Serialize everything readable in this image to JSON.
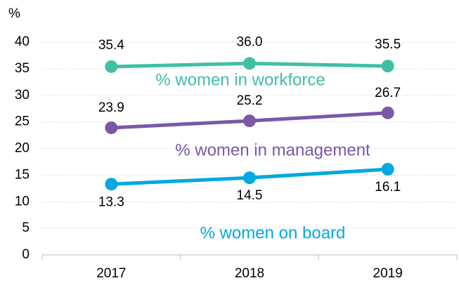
{
  "chart_data": {
    "type": "line",
    "y_label": "%",
    "categories": [
      "2017",
      "2018",
      "2019"
    ],
    "series": [
      {
        "name": "% women in workforce",
        "color": "#41bfa3",
        "values": [
          35.4,
          36,
          35.5
        ],
        "value_labels": [
          "35.4",
          "36.0",
          "35.5"
        ]
      },
      {
        "name": "% women in management",
        "color": "#7a58a8",
        "values": [
          23.9,
          25.2,
          26.7
        ],
        "value_labels": [
          "23.9",
          "25.2",
          "26.7"
        ]
      },
      {
        "name": "% women on board",
        "color": "#00a9e0",
        "values": [
          13.3,
          14.5,
          16.1
        ],
        "value_labels": [
          "13.3",
          "14.5",
          "16.1"
        ]
      }
    ],
    "ylim": [
      0,
      40
    ],
    "yticks": [
      0,
      5,
      10,
      15,
      20,
      25,
      30,
      35,
      40
    ],
    "grid": true
  }
}
